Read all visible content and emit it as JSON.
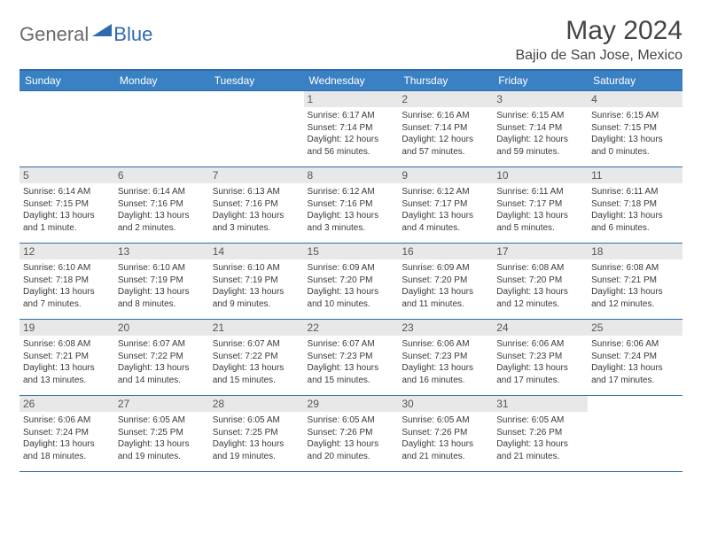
{
  "logo": {
    "general": "General",
    "blue": "Blue"
  },
  "title": "May 2024",
  "location": "Bajio de San Jose, Mexico",
  "colors": {
    "header_bg": "#3a81c4",
    "header_border": "#2f6aad",
    "cell_border": "#2f6aad",
    "daynum_bg": "#e8e8e8",
    "text": "#3a3a3a",
    "title_text": "#454545",
    "logo_general": "#6a6a6a",
    "logo_blue": "#2f6aad"
  },
  "weekdays": [
    "Sunday",
    "Monday",
    "Tuesday",
    "Wednesday",
    "Thursday",
    "Friday",
    "Saturday"
  ],
  "weeks": [
    [
      {
        "n": "",
        "sr": "",
        "ss": "",
        "dl": ""
      },
      {
        "n": "",
        "sr": "",
        "ss": "",
        "dl": ""
      },
      {
        "n": "",
        "sr": "",
        "ss": "",
        "dl": ""
      },
      {
        "n": "1",
        "sr": "6:17 AM",
        "ss": "7:14 PM",
        "dl": "12 hours and 56 minutes."
      },
      {
        "n": "2",
        "sr": "6:16 AM",
        "ss": "7:14 PM",
        "dl": "12 hours and 57 minutes."
      },
      {
        "n": "3",
        "sr": "6:15 AM",
        "ss": "7:14 PM",
        "dl": "12 hours and 59 minutes."
      },
      {
        "n": "4",
        "sr": "6:15 AM",
        "ss": "7:15 PM",
        "dl": "13 hours and 0 minutes."
      }
    ],
    [
      {
        "n": "5",
        "sr": "6:14 AM",
        "ss": "7:15 PM",
        "dl": "13 hours and 1 minute."
      },
      {
        "n": "6",
        "sr": "6:14 AM",
        "ss": "7:16 PM",
        "dl": "13 hours and 2 minutes."
      },
      {
        "n": "7",
        "sr": "6:13 AM",
        "ss": "7:16 PM",
        "dl": "13 hours and 3 minutes."
      },
      {
        "n": "8",
        "sr": "6:12 AM",
        "ss": "7:16 PM",
        "dl": "13 hours and 3 minutes."
      },
      {
        "n": "9",
        "sr": "6:12 AM",
        "ss": "7:17 PM",
        "dl": "13 hours and 4 minutes."
      },
      {
        "n": "10",
        "sr": "6:11 AM",
        "ss": "7:17 PM",
        "dl": "13 hours and 5 minutes."
      },
      {
        "n": "11",
        "sr": "6:11 AM",
        "ss": "7:18 PM",
        "dl": "13 hours and 6 minutes."
      }
    ],
    [
      {
        "n": "12",
        "sr": "6:10 AM",
        "ss": "7:18 PM",
        "dl": "13 hours and 7 minutes."
      },
      {
        "n": "13",
        "sr": "6:10 AM",
        "ss": "7:19 PM",
        "dl": "13 hours and 8 minutes."
      },
      {
        "n": "14",
        "sr": "6:10 AM",
        "ss": "7:19 PM",
        "dl": "13 hours and 9 minutes."
      },
      {
        "n": "15",
        "sr": "6:09 AM",
        "ss": "7:20 PM",
        "dl": "13 hours and 10 minutes."
      },
      {
        "n": "16",
        "sr": "6:09 AM",
        "ss": "7:20 PM",
        "dl": "13 hours and 11 minutes."
      },
      {
        "n": "17",
        "sr": "6:08 AM",
        "ss": "7:20 PM",
        "dl": "13 hours and 12 minutes."
      },
      {
        "n": "18",
        "sr": "6:08 AM",
        "ss": "7:21 PM",
        "dl": "13 hours and 12 minutes."
      }
    ],
    [
      {
        "n": "19",
        "sr": "6:08 AM",
        "ss": "7:21 PM",
        "dl": "13 hours and 13 minutes."
      },
      {
        "n": "20",
        "sr": "6:07 AM",
        "ss": "7:22 PM",
        "dl": "13 hours and 14 minutes."
      },
      {
        "n": "21",
        "sr": "6:07 AM",
        "ss": "7:22 PM",
        "dl": "13 hours and 15 minutes."
      },
      {
        "n": "22",
        "sr": "6:07 AM",
        "ss": "7:23 PM",
        "dl": "13 hours and 15 minutes."
      },
      {
        "n": "23",
        "sr": "6:06 AM",
        "ss": "7:23 PM",
        "dl": "13 hours and 16 minutes."
      },
      {
        "n": "24",
        "sr": "6:06 AM",
        "ss": "7:23 PM",
        "dl": "13 hours and 17 minutes."
      },
      {
        "n": "25",
        "sr": "6:06 AM",
        "ss": "7:24 PM",
        "dl": "13 hours and 17 minutes."
      }
    ],
    [
      {
        "n": "26",
        "sr": "6:06 AM",
        "ss": "7:24 PM",
        "dl": "13 hours and 18 minutes."
      },
      {
        "n": "27",
        "sr": "6:05 AM",
        "ss": "7:25 PM",
        "dl": "13 hours and 19 minutes."
      },
      {
        "n": "28",
        "sr": "6:05 AM",
        "ss": "7:25 PM",
        "dl": "13 hours and 19 minutes."
      },
      {
        "n": "29",
        "sr": "6:05 AM",
        "ss": "7:26 PM",
        "dl": "13 hours and 20 minutes."
      },
      {
        "n": "30",
        "sr": "6:05 AM",
        "ss": "7:26 PM",
        "dl": "13 hours and 21 minutes."
      },
      {
        "n": "31",
        "sr": "6:05 AM",
        "ss": "7:26 PM",
        "dl": "13 hours and 21 minutes."
      },
      {
        "n": "",
        "sr": "",
        "ss": "",
        "dl": ""
      }
    ]
  ]
}
